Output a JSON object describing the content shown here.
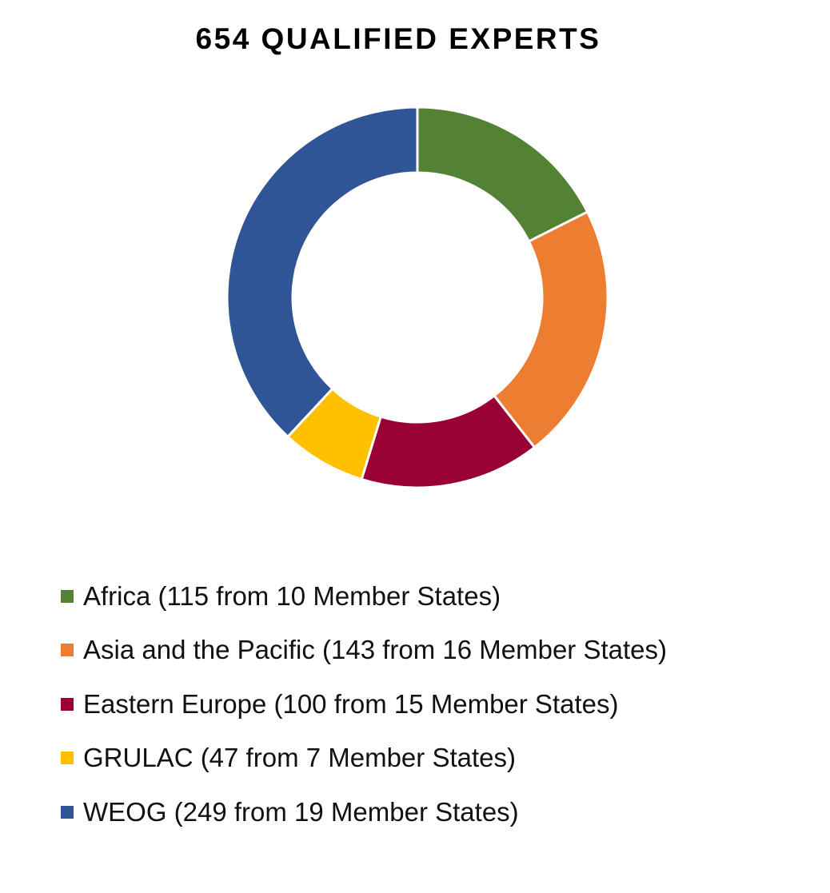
{
  "chart_data": {
    "type": "pie",
    "donut": true,
    "title": "654 QUALIFIED EXPERTS",
    "legend_position": "bottom",
    "slices": [
      {
        "label": "Africa (115 from 10 Member States)",
        "value": 115,
        "color": "#548235"
      },
      {
        "label": "Asia and the Pacific (143 from 16 Member States)",
        "value": 143,
        "color": "#ED7D31"
      },
      {
        "label": "Eastern Europe (100 from 15 Member States)",
        "value": 100,
        "color": "#990033"
      },
      {
        "label": "GRULAC (47 from 7 Member States)",
        "value": 47,
        "color": "#FFC000"
      },
      {
        "label": "WEOG (249 from 19 Member States)",
        "value": 249,
        "color": "#2F5597"
      }
    ]
  }
}
